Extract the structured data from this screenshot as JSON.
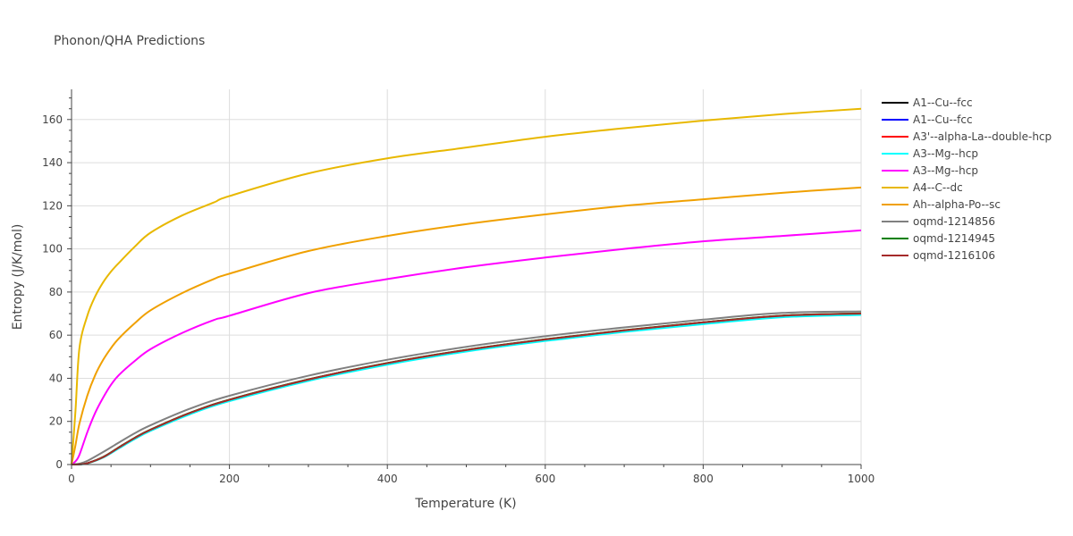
{
  "chart_data": {
    "type": "line",
    "title": "Phonon/QHA Predictions",
    "xlabel": "Temperature (K)",
    "ylabel": "Entropy (J/K/mol)",
    "xlim": [
      0,
      1000
    ],
    "ylim": [
      0,
      174
    ],
    "xticks": [
      0,
      200,
      400,
      600,
      800,
      1000
    ],
    "yticks": [
      0,
      20,
      40,
      60,
      80,
      100,
      120,
      140,
      160
    ],
    "grid": true,
    "legend_position": "right",
    "series": [
      {
        "name": "A1--Cu--fcc",
        "color": "#000000",
        "x": [
          0,
          10,
          20,
          40,
          60,
          80,
          100,
          150,
          200,
          300,
          400,
          500,
          600,
          700,
          800,
          900,
          1000
        ],
        "y": [
          0,
          0.1,
          0.6,
          3.4,
          7.9,
          12.3,
          16.1,
          23.9,
          30.0,
          39.4,
          47.0,
          53.1,
          58.0,
          62.2,
          65.9,
          69.0,
          70.0
        ]
      },
      {
        "name": "A1--Cu--fcc",
        "color": "#0000ff",
        "x": [
          0,
          10,
          20,
          40,
          60,
          80,
          100,
          150,
          200,
          300,
          400,
          500,
          600,
          700,
          800,
          900,
          1000
        ],
        "y": [
          0,
          0.1,
          0.6,
          3.4,
          7.9,
          12.3,
          16.1,
          23.9,
          30.0,
          39.4,
          47.0,
          53.1,
          58.0,
          62.2,
          65.9,
          69.0,
          70.0
        ]
      },
      {
        "name": "A3'--alpha-La--double-hcp",
        "color": "#ff0000",
        "x": [
          0,
          10,
          20,
          40,
          60,
          80,
          100,
          150,
          200,
          300,
          400,
          500,
          600,
          700,
          800,
          900,
          1000
        ],
        "y": [
          0,
          0.1,
          0.6,
          3.4,
          7.9,
          12.3,
          16.1,
          23.9,
          30.0,
          39.4,
          47.0,
          53.1,
          58.0,
          62.2,
          65.9,
          69.0,
          70.0
        ]
      },
      {
        "name": "A3--Mg--hcp",
        "color": "#00ffff",
        "x": [
          0,
          10,
          20,
          40,
          60,
          80,
          100,
          150,
          200,
          300,
          400,
          500,
          600,
          700,
          800,
          900,
          1000
        ],
        "y": [
          0,
          0.1,
          0.5,
          3.2,
          7.5,
          11.8,
          15.6,
          23.3,
          29.4,
          38.8,
          46.3,
          52.4,
          57.3,
          61.5,
          65.1,
          68.3,
          69.4
        ]
      },
      {
        "name": "A3--Mg--hcp",
        "color": "#ff00ff",
        "x": [
          0,
          5,
          10,
          20,
          30,
          40,
          50,
          60,
          80,
          100,
          140,
          180,
          200,
          300,
          400,
          500,
          600,
          700,
          800,
          900,
          1000
        ],
        "y": [
          0,
          1.5,
          4.5,
          15.0,
          24.0,
          31.0,
          37.0,
          41.5,
          48.0,
          53.5,
          61.0,
          67.0,
          69.0,
          79.5,
          86.0,
          91.5,
          96.0,
          100.0,
          103.5,
          106.0,
          108.6
        ]
      },
      {
        "name": "A4--C--dc",
        "color": "#e8b800",
        "x": [
          0,
          5,
          10,
          20,
          30,
          40,
          50,
          60,
          80,
          100,
          140,
          180,
          200,
          300,
          400,
          500,
          600,
          700,
          800,
          900,
          1000
        ],
        "y": [
          0,
          25.0,
          54.0,
          69.0,
          78.0,
          84.5,
          89.5,
          93.5,
          101.0,
          107.5,
          115.5,
          121.5,
          124.5,
          135.0,
          142.0,
          147.0,
          152.0,
          156.0,
          159.5,
          162.5,
          165.0
        ]
      },
      {
        "name": "Ah--alpha-Po--sc",
        "color": "#f0a000",
        "x": [
          0,
          5,
          10,
          20,
          30,
          40,
          50,
          60,
          80,
          100,
          140,
          180,
          200,
          300,
          400,
          500,
          600,
          700,
          800,
          900,
          1000
        ],
        "y": [
          0,
          9.0,
          19.0,
          32.0,
          41.5,
          48.5,
          54.0,
          58.5,
          65.5,
          71.5,
          79.5,
          86.0,
          88.5,
          99.0,
          106.0,
          111.5,
          116.0,
          120.0,
          123.0,
          126.0,
          128.5
        ]
      },
      {
        "name": "oqmd-1214856",
        "color": "#808080",
        "x": [
          0,
          10,
          20,
          40,
          60,
          80,
          100,
          150,
          200,
          300,
          400,
          500,
          600,
          700,
          800,
          900,
          1000
        ],
        "y": [
          0,
          0.4,
          1.7,
          5.8,
          10.2,
          14.5,
          18.2,
          25.9,
          31.9,
          41.2,
          48.6,
          54.6,
          59.5,
          63.6,
          67.2,
          70.3,
          71.0
        ]
      },
      {
        "name": "oqmd-1214945",
        "color": "#008000",
        "x": [
          0,
          10,
          20,
          40,
          60,
          80,
          100,
          150,
          200,
          300,
          400,
          500,
          600,
          700,
          800,
          900,
          1000
        ],
        "y": [
          0,
          0.1,
          0.6,
          3.5,
          8.0,
          12.4,
          16.2,
          24.0,
          30.1,
          39.5,
          47.1,
          53.2,
          58.1,
          62.3,
          66.0,
          69.1,
          70.1
        ]
      },
      {
        "name": "oqmd-1216106",
        "color": "#a52a2a",
        "x": [
          0,
          10,
          20,
          40,
          60,
          80,
          100,
          150,
          200,
          300,
          400,
          500,
          600,
          700,
          800,
          900,
          1000
        ],
        "y": [
          0,
          0.1,
          0.6,
          3.4,
          7.9,
          12.3,
          16.1,
          23.9,
          30.0,
          39.4,
          47.0,
          53.1,
          58.0,
          62.2,
          65.9,
          69.0,
          70.0
        ]
      }
    ]
  }
}
